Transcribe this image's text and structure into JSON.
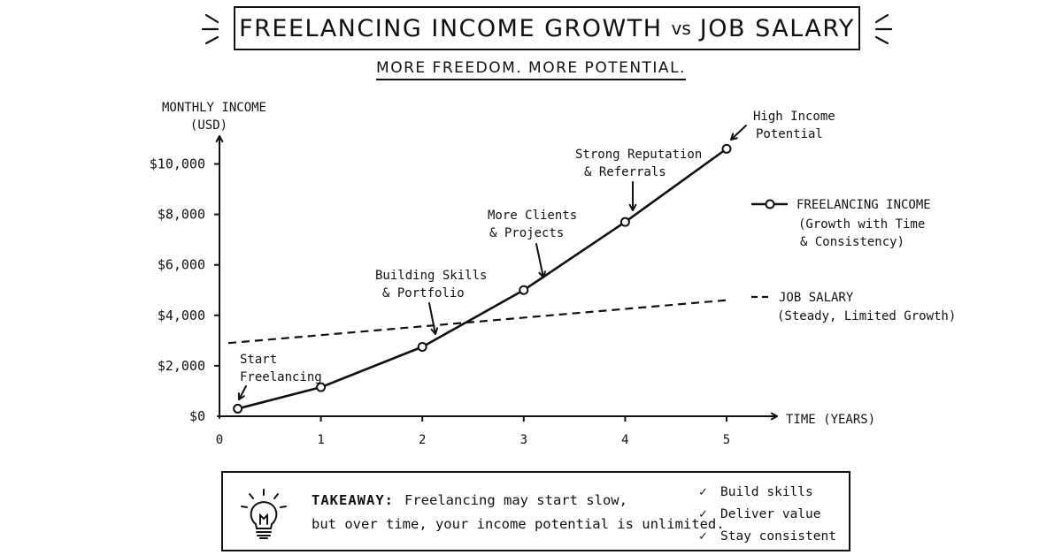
{
  "header": {
    "title_left": "FREELANCING INCOME GROWTH",
    "title_vs": "vs",
    "title_right": "JOB SALARY",
    "subtitle": "MORE FREEDOM. MORE POTENTIAL."
  },
  "chart_data": {
    "type": "line",
    "title": "FREELANCING INCOME GROWTH vs JOB SALARY",
    "subtitle": "MORE FREEDOM. MORE POTENTIAL.",
    "ylabel": [
      "MONTHLY INCOME",
      "(USD)"
    ],
    "xlabel": "TIME (YEARS)",
    "ylim": [
      0,
      10500
    ],
    "xlim": [
      0,
      5.5
    ],
    "y_ticks": [
      0,
      2000,
      4000,
      6000,
      8000,
      10000
    ],
    "y_tick_labels": [
      "$0",
      "$2,000",
      "$4,000",
      "$6,000",
      "$8,000",
      "$10,000"
    ],
    "x_ticks": [
      0,
      1,
      2,
      3,
      4,
      5
    ],
    "x_tick_labels": [
      "0",
      "1",
      "2",
      "3",
      "4",
      "5"
    ],
    "grid": false,
    "legend_position": "right",
    "series": [
      {
        "name": "FREELANCING INCOME",
        "legend_note": [
          "(Growth with Time",
          "& Consistency)"
        ],
        "style": "solid-with-markers",
        "x": [
          0.18,
          1,
          2,
          3,
          4,
          5
        ],
        "y": [
          300,
          1150,
          2750,
          5000,
          7700,
          10600
        ]
      },
      {
        "name": "JOB SALARY",
        "legend_note": [
          "(Steady, Limited Growth)"
        ],
        "style": "dashed",
        "x": [
          0,
          5
        ],
        "y": [
          2900,
          4600
        ]
      }
    ],
    "annotations": [
      {
        "lines": [
          "Start",
          "Freelancing"
        ],
        "x": 0.18,
        "y": 300
      },
      {
        "lines": [
          "Building Skills",
          "& Portfolio"
        ],
        "x": 2,
        "y": 2750
      },
      {
        "lines": [
          "More Clients",
          "& Projects"
        ],
        "x": 3,
        "y": 5000
      },
      {
        "lines": [
          "Strong Reputation",
          "& Referrals"
        ],
        "x": 4,
        "y": 7700
      },
      {
        "lines": [
          "High Income",
          "Potential"
        ],
        "x": 5,
        "y": 10600
      }
    ],
    "colors": {
      "ink": "#111111",
      "background": "#ffffff"
    }
  },
  "takeaway": {
    "label": "TAKEAWAY:",
    "line1": "Freelancing may start slow,",
    "line2": "but over time, your income potential is unlimited.",
    "icon": "lightbulb-icon",
    "checklist": [
      "Build skills",
      "Deliver value",
      "Stay consistent"
    ]
  }
}
